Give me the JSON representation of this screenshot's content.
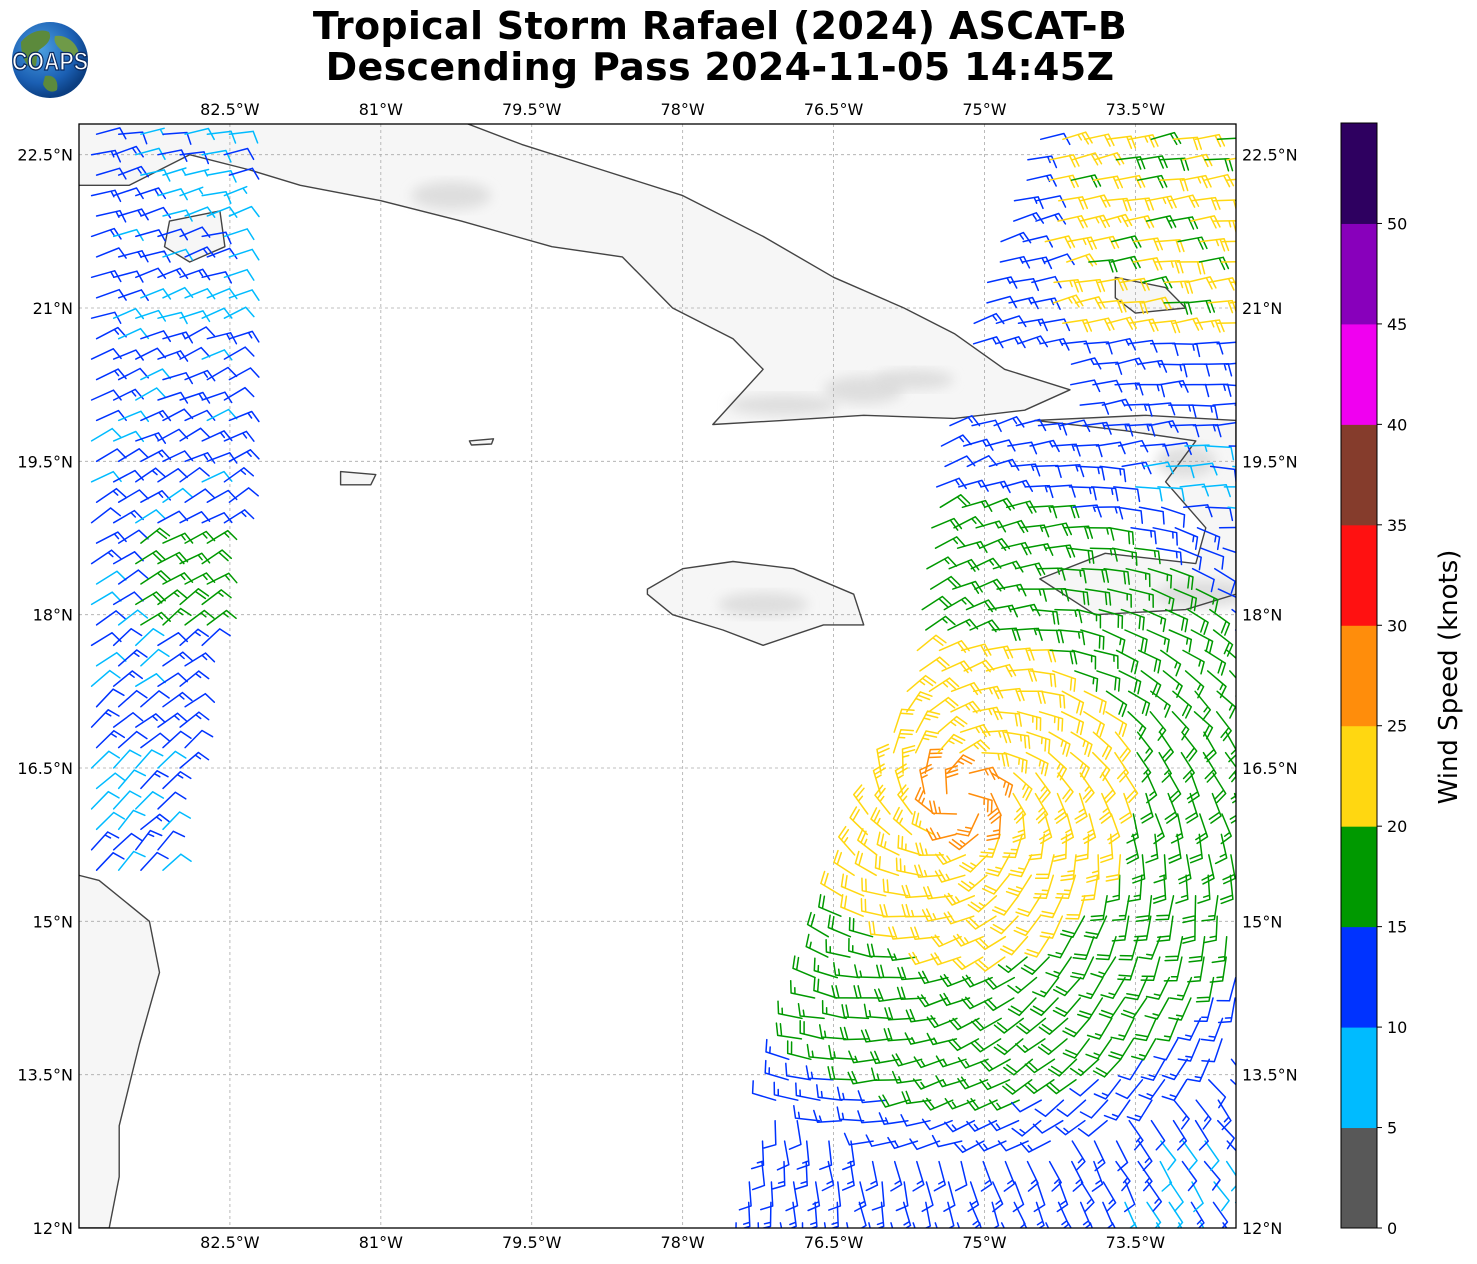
{
  "title": {
    "line1": "Tropical Storm Rafael (2024) ASCAT-B",
    "line2": "Descending Pass 2024-11-05 14:45Z"
  },
  "logo": {
    "text": "COAPS",
    "icon": "globe-logo-icon"
  },
  "map": {
    "lon_range": [
      -84.0,
      -72.5
    ],
    "lat_range": [
      12.0,
      22.8
    ],
    "lon_ticks": [
      {
        "value": -82.5,
        "label": "82.5°W"
      },
      {
        "value": -81.0,
        "label": "81°W"
      },
      {
        "value": -79.5,
        "label": "79.5°W"
      },
      {
        "value": -78.0,
        "label": "78°W"
      },
      {
        "value": -76.5,
        "label": "76.5°W"
      },
      {
        "value": -75.0,
        "label": "75°W"
      },
      {
        "value": -73.5,
        "label": "73.5°W"
      }
    ],
    "lat_ticks": [
      {
        "value": 22.5,
        "label": "22.5°N"
      },
      {
        "value": 21.0,
        "label": "21°N"
      },
      {
        "value": 19.5,
        "label": "19.5°N"
      },
      {
        "value": 18.0,
        "label": "18°N"
      },
      {
        "value": 16.5,
        "label": "16.5°N"
      },
      {
        "value": 15.0,
        "label": "15°N"
      },
      {
        "value": 13.5,
        "label": "13.5°N"
      },
      {
        "value": 12.0,
        "label": "12°N"
      }
    ],
    "grid": true,
    "land_outline_color": "#444444",
    "terrain_shading_color": "#d8d8d8"
  },
  "colorbar": {
    "label": "Wind Speed (knots)",
    "bins": [
      {
        "min": 0,
        "max": 5,
        "color": "#585858"
      },
      {
        "min": 5,
        "max": 10,
        "color": "#00bbff"
      },
      {
        "min": 10,
        "max": 15,
        "color": "#0033ff"
      },
      {
        "min": 15,
        "max": 20,
        "color": "#009900"
      },
      {
        "min": 20,
        "max": 25,
        "color": "#ffd711"
      },
      {
        "min": 25,
        "max": 30,
        "color": "#ff8d0b"
      },
      {
        "min": 30,
        "max": 35,
        "color": "#ff1111"
      },
      {
        "min": 35,
        "max": 40,
        "color": "#853c2c"
      },
      {
        "min": 40,
        "max": 45,
        "color": "#f000f0"
      },
      {
        "min": 45,
        "max": 50,
        "color": "#8800bb"
      },
      {
        "min": 50,
        "max": 55,
        "color": "#2e0060"
      }
    ],
    "tick_labels": [
      "0",
      "5",
      "10",
      "15",
      "20",
      "25",
      "30",
      "35",
      "40",
      "45",
      "50"
    ]
  },
  "wind_swaths": {
    "direction_convention": "meteorological (from), wind barbs",
    "west_swath": {
      "lon_range": [
        -83.9,
        -82.4
      ],
      "lat_range": [
        15.5,
        22.7
      ],
      "dominant_speed_kt": 12,
      "direction_deg": 60,
      "colors": [
        "#0033ff",
        "#00bbff",
        "#009900",
        "#ffd711"
      ]
    },
    "east_swath": {
      "lat_range": [
        12.0,
        22.7
      ],
      "west_edge_lon_at_lat": [
        [
          12.0,
          -77.5
        ],
        [
          17.5,
          -75.7
        ],
        [
          20.0,
          -75.4
        ],
        [
          22.7,
          -74.5
        ]
      ],
      "east_edge_lon": -72.5,
      "storm_center": {
        "lat": 16.2,
        "lon": -75.2
      },
      "max_speed_kt": 27
    }
  }
}
